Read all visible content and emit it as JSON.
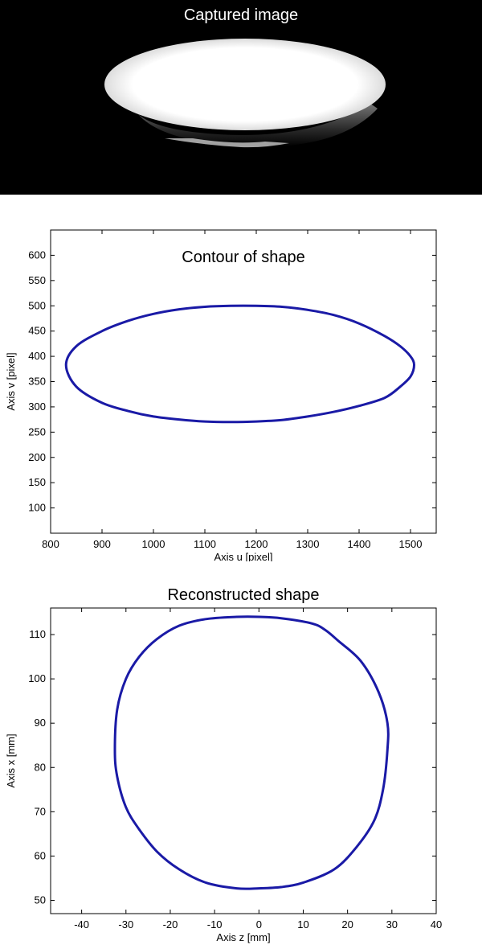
{
  "photo": {
    "title": "Captured image"
  },
  "chart_data": [
    {
      "type": "line",
      "title": "Contour of shape",
      "xlabel": "Axis u [pixel]",
      "ylabel": "Axis v [pixel]",
      "xlim": [
        800,
        1550
      ],
      "ylim": [
        50,
        650
      ],
      "xticks": [
        800,
        900,
        1000,
        1100,
        1200,
        1300,
        1400,
        1500
      ],
      "yticks": [
        100,
        150,
        200,
        250,
        300,
        350,
        400,
        450,
        500,
        550,
        600
      ],
      "grid": false,
      "series": [
        {
          "color": "#1a1aa6",
          "x": [
            830,
            850,
            900,
            950,
            1000,
            1050,
            1100,
            1150,
            1200,
            1250,
            1300,
            1350,
            1400,
            1450,
            1480,
            1500,
            1507,
            1500,
            1480,
            1450,
            1400,
            1350,
            1300,
            1250,
            1200,
            1150,
            1100,
            1050,
            1000,
            950,
            900,
            850,
            830
          ],
          "y": [
            383,
            420,
            450,
            470,
            484,
            493,
            498,
            500,
            500,
            498,
            492,
            482,
            465,
            440,
            420,
            400,
            383,
            360,
            340,
            318,
            302,
            290,
            281,
            274,
            271,
            270,
            271,
            275,
            281,
            292,
            308,
            340,
            383
          ]
        }
      ]
    },
    {
      "type": "line",
      "title": "Reconstructed  shape",
      "xlabel": "Axis z [mm]",
      "ylabel": "Axis x [mm]",
      "xlim": [
        -47,
        40
      ],
      "ylim": [
        47,
        116
      ],
      "xticks": [
        -40,
        -30,
        -20,
        -10,
        0,
        10,
        20,
        30,
        40
      ],
      "yticks": [
        50,
        60,
        70,
        80,
        90,
        100,
        110
      ],
      "grid": false,
      "series": [
        {
          "color": "#1a1aa6",
          "x": [
            -32.5,
            -32,
            -30,
            -27,
            -23,
            -18,
            -12,
            -5,
            0,
            5,
            12,
            15,
            18,
            23,
            27,
            29,
            29,
            28,
            26,
            22,
            17,
            10,
            5,
            0,
            -5,
            -12,
            -18,
            -23,
            -27,
            -30,
            -32,
            -32.5
          ],
          "y": [
            84,
            93,
            100,
            105,
            109,
            112,
            113.5,
            114,
            114,
            113.7,
            112.5,
            111,
            108.5,
            104,
            97,
            90,
            84,
            75,
            68,
            62,
            57,
            54,
            53,
            52.7,
            52.7,
            54,
            57,
            61,
            66,
            71,
            78,
            84
          ]
        }
      ]
    }
  ]
}
